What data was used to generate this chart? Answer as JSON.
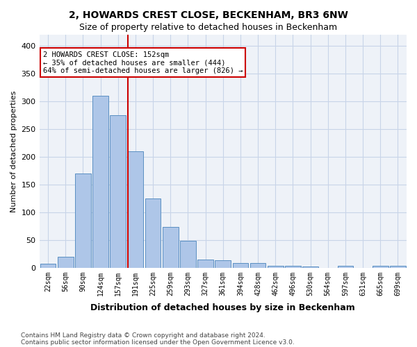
{
  "title1": "2, HOWARDS CREST CLOSE, BECKENHAM, BR3 6NW",
  "title2": "Size of property relative to detached houses in Beckenham",
  "xlabel": "Distribution of detached houses by size in Beckenham",
  "ylabel": "Number of detached properties",
  "bin_labels": [
    "22sqm",
    "56sqm",
    "90sqm",
    "124sqm",
    "157sqm",
    "191sqm",
    "225sqm",
    "259sqm",
    "293sqm",
    "327sqm",
    "361sqm",
    "394sqm",
    "428sqm",
    "462sqm",
    "496sqm",
    "530sqm",
    "564sqm",
    "597sqm",
    "631sqm",
    "665sqm",
    "699sqm"
  ],
  "bar_values": [
    7,
    20,
    170,
    310,
    275,
    210,
    125,
    74,
    48,
    15,
    14,
    8,
    8,
    3,
    3,
    2,
    0,
    4,
    0,
    4,
    3
  ],
  "bar_color": "#aec6e8",
  "bar_edge_color": "#5a8fc2",
  "vertical_line_x": 4.55,
  "annotation_title": "2 HOWARDS CREST CLOSE: 152sqm",
  "annotation_line1": "← 35% of detached houses are smaller (444)",
  "annotation_line2": "64% of semi-detached houses are larger (826) →",
  "annotation_box_color": "#ffffff",
  "annotation_box_edge": "#cc0000",
  "vertical_line_color": "#cc0000",
  "grid_color": "#c8d4e8",
  "background_color": "#eef2f8",
  "footnote1": "Contains HM Land Registry data © Crown copyright and database right 2024.",
  "footnote2": "Contains public sector information licensed under the Open Government Licence v3.0.",
  "ylim": [
    0,
    420
  ],
  "yticks": [
    0,
    50,
    100,
    150,
    200,
    250,
    300,
    350,
    400
  ]
}
